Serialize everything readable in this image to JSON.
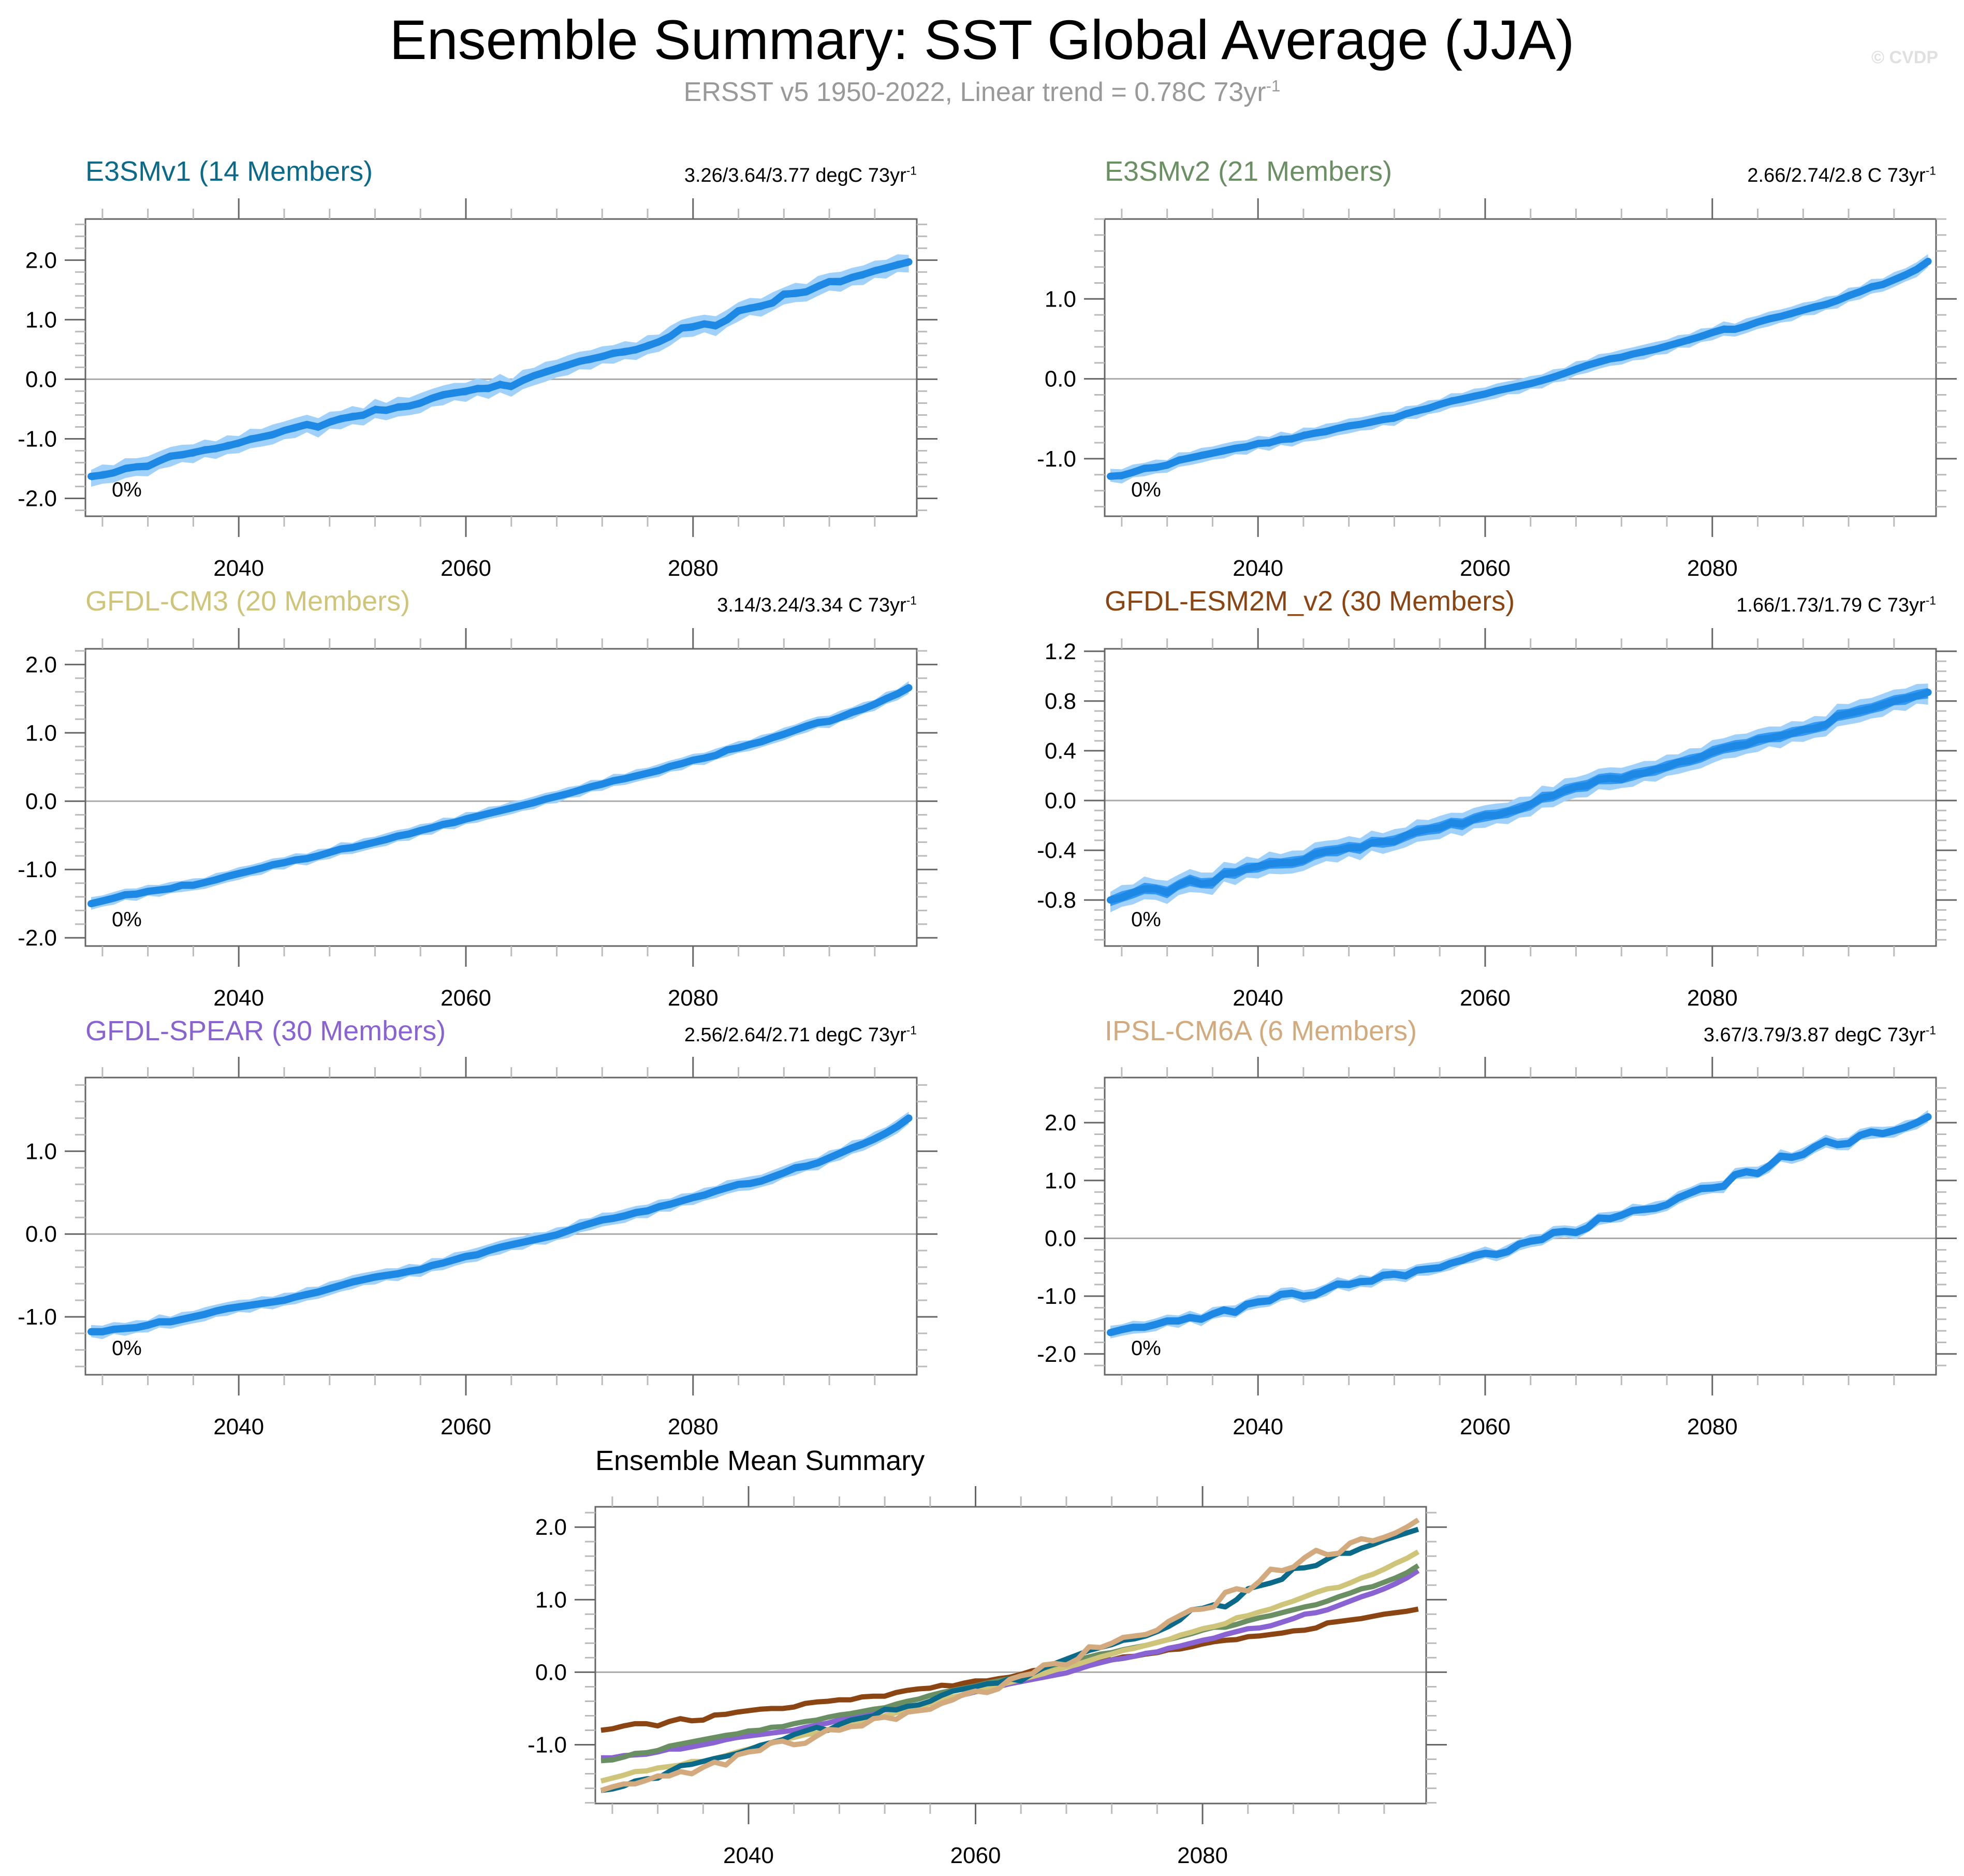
{
  "header": {
    "title": "Ensemble Summary: SST Global Average (JJA)",
    "subtitle": "ERSST v5 1950-2022, Linear trend = 0.78C 73yr",
    "subtitle_sup": "-1",
    "copyright": "© CVDP"
  },
  "colors": {
    "outer_band": "#9fd1fb",
    "inner_band": "#3399f5",
    "mean_line": "#1e88e5",
    "zero_line": "#aaaaaa",
    "axis": "#666666"
  },
  "chart_data": [
    {
      "type": "area",
      "title": "E3SMv1 (14 Members)",
      "title_color": "#0b6a8a",
      "trend_label": "3.26/3.64/3.77 degC 73yr",
      "trend_sup": "-1",
      "percent_label": "0%",
      "x_start": 2027,
      "xticks": [
        2040,
        2060,
        2080
      ],
      "xlim": [
        2026.5,
        2099.7
      ],
      "yticks": [
        -2.0,
        -1.0,
        0.0,
        1.0,
        2.0
      ],
      "ytick_labels": [
        "-2.0",
        "-1.0",
        "0.0",
        "1.0",
        "2.0"
      ],
      "ylim": [
        -2.3,
        2.69
      ],
      "spread_inner": 0.07,
      "spread_outer": 0.18,
      "mean": [
        -1.63,
        -1.61,
        -1.57,
        -1.5,
        -1.47,
        -1.46,
        -1.37,
        -1.29,
        -1.27,
        -1.23,
        -1.19,
        -1.16,
        -1.12,
        -1.07,
        -1.01,
        -0.97,
        -0.93,
        -0.86,
        -0.81,
        -0.76,
        -0.8,
        -0.72,
        -0.66,
        -0.63,
        -0.6,
        -0.51,
        -0.52,
        -0.47,
        -0.45,
        -0.4,
        -0.32,
        -0.26,
        -0.23,
        -0.2,
        -0.16,
        -0.15,
        -0.09,
        -0.12,
        -0.02,
        0.06,
        0.12,
        0.18,
        0.24,
        0.3,
        0.34,
        0.38,
        0.44,
        0.46,
        0.5,
        0.56,
        0.63,
        0.72,
        0.86,
        0.88,
        0.93,
        0.9,
        1.0,
        1.15,
        1.19,
        1.23,
        1.28,
        1.43,
        1.44,
        1.47,
        1.56,
        1.64,
        1.64,
        1.71,
        1.76,
        1.82,
        1.87,
        1.92,
        1.97
      ]
    },
    {
      "type": "area",
      "title": "E3SMv2 (21 Members)",
      "title_color": "#6a8f62",
      "trend_label": "2.66/2.74/2.8 C 73yr",
      "trend_sup": "-1",
      "percent_label": "0%",
      "x_start": 2027,
      "xticks": [
        2040,
        2060,
        2080
      ],
      "xlim": [
        2026.5,
        2099.7
      ],
      "yticks": [
        -1.0,
        0.0,
        1.0
      ],
      "ytick_labels": [
        "-1.0",
        "0.0",
        "1.0"
      ],
      "ylim": [
        -1.72,
        2.0
      ],
      "spread_inner": 0.05,
      "spread_outer": 0.1,
      "mean": [
        -1.22,
        -1.21,
        -1.17,
        -1.12,
        -1.11,
        -1.08,
        -1.02,
        -0.99,
        -0.96,
        -0.93,
        -0.9,
        -0.87,
        -0.85,
        -0.81,
        -0.8,
        -0.76,
        -0.75,
        -0.71,
        -0.68,
        -0.66,
        -0.62,
        -0.59,
        -0.57,
        -0.54,
        -0.51,
        -0.49,
        -0.44,
        -0.4,
        -0.37,
        -0.32,
        -0.28,
        -0.25,
        -0.22,
        -0.19,
        -0.15,
        -0.12,
        -0.09,
        -0.06,
        -0.02,
        0.02,
        0.07,
        0.12,
        0.17,
        0.21,
        0.25,
        0.27,
        0.31,
        0.34,
        0.37,
        0.41,
        0.45,
        0.49,
        0.53,
        0.58,
        0.62,
        0.62,
        0.66,
        0.71,
        0.75,
        0.78,
        0.82,
        0.86,
        0.9,
        0.93,
        0.98,
        1.04,
        1.09,
        1.15,
        1.18,
        1.24,
        1.3,
        1.37,
        1.47
      ]
    },
    {
      "type": "area",
      "title": "GFDL-CM3 (20 Members)",
      "title_color": "#cfc57a",
      "trend_label": "3.14/3.24/3.34 C 73yr",
      "trend_sup": "-1",
      "percent_label": "0%",
      "x_start": 2027,
      "xticks": [
        2040,
        2060,
        2080
      ],
      "xlim": [
        2026.5,
        2099.7
      ],
      "yticks": [
        -2.0,
        -1.0,
        0.0,
        1.0,
        2.0
      ],
      "ytick_labels": [
        "-2.0",
        "-1.0",
        "0.0",
        "1.0",
        "2.0"
      ],
      "ylim": [
        -2.12,
        2.23
      ],
      "spread_inner": 0.05,
      "spread_outer": 0.1,
      "mean": [
        -1.5,
        -1.46,
        -1.42,
        -1.37,
        -1.36,
        -1.32,
        -1.3,
        -1.28,
        -1.23,
        -1.23,
        -1.19,
        -1.15,
        -1.1,
        -1.06,
        -1.02,
        -0.98,
        -0.93,
        -0.9,
        -0.86,
        -0.84,
        -0.8,
        -0.75,
        -0.7,
        -0.68,
        -0.64,
        -0.6,
        -0.56,
        -0.51,
        -0.48,
        -0.43,
        -0.39,
        -0.34,
        -0.31,
        -0.26,
        -0.22,
        -0.18,
        -0.14,
        -0.1,
        -0.06,
        -0.02,
        0.03,
        0.07,
        0.11,
        0.16,
        0.21,
        0.25,
        0.3,
        0.33,
        0.37,
        0.41,
        0.45,
        0.51,
        0.55,
        0.6,
        0.63,
        0.67,
        0.75,
        0.78,
        0.83,
        0.87,
        0.93,
        0.98,
        1.04,
        1.1,
        1.15,
        1.17,
        1.23,
        1.3,
        1.35,
        1.42,
        1.5,
        1.57,
        1.66
      ]
    },
    {
      "type": "area",
      "title": "GFDL-ESM2M_v2 (30 Members)",
      "title_color": "#8b4513",
      "trend_label": "1.66/1.73/1.79 C 73yr",
      "trend_sup": "-1",
      "percent_label": "0%",
      "x_start": 2027,
      "xticks": [
        2040,
        2060,
        2080
      ],
      "xlim": [
        2026.5,
        2099.7
      ],
      "yticks": [
        -0.8,
        -0.4,
        0.0,
        0.4,
        0.8,
        1.2
      ],
      "ytick_labels": [
        "-0.8",
        "-0.4",
        "0.0",
        "0.4",
        "0.8",
        "1.2"
      ],
      "ylim": [
        -1.17,
        1.22
      ],
      "spread_inner": 0.05,
      "spread_outer": 0.1,
      "mean": [
        -0.8,
        -0.78,
        -0.74,
        -0.71,
        -0.71,
        -0.74,
        -0.68,
        -0.64,
        -0.67,
        -0.66,
        -0.59,
        -0.58,
        -0.55,
        -0.53,
        -0.51,
        -0.5,
        -0.5,
        -0.48,
        -0.43,
        -0.41,
        -0.4,
        -0.38,
        -0.38,
        -0.34,
        -0.33,
        -0.33,
        -0.28,
        -0.25,
        -0.23,
        -0.22,
        -0.18,
        -0.19,
        -0.15,
        -0.12,
        -0.12,
        -0.09,
        -0.07,
        -0.03,
        0.02,
        0.04,
        0.08,
        0.11,
        0.12,
        0.17,
        0.18,
        0.17,
        0.21,
        0.22,
        0.25,
        0.27,
        0.31,
        0.32,
        0.35,
        0.39,
        0.42,
        0.44,
        0.45,
        0.49,
        0.5,
        0.52,
        0.54,
        0.57,
        0.58,
        0.61,
        0.68,
        0.7,
        0.72,
        0.74,
        0.77,
        0.8,
        0.82,
        0.84,
        0.87
      ]
    },
    {
      "type": "area",
      "title": "GFDL-SPEAR (30 Members)",
      "title_color": "#8a63d2",
      "trend_label": "2.56/2.64/2.71 degC 73yr",
      "trend_sup": "-1",
      "percent_label": "0%",
      "x_start": 2027,
      "xticks": [
        2040,
        2060,
        2080
      ],
      "xlim": [
        2026.5,
        2099.7
      ],
      "yticks": [
        -1.0,
        0.0,
        1.0
      ],
      "ytick_labels": [
        "-1.0",
        "0.0",
        "1.0"
      ],
      "ylim": [
        -1.7,
        1.89
      ],
      "spread_inner": 0.04,
      "spread_outer": 0.09,
      "mean": [
        -1.18,
        -1.18,
        -1.15,
        -1.14,
        -1.13,
        -1.1,
        -1.06,
        -1.06,
        -1.03,
        -1.0,
        -0.97,
        -0.93,
        -0.9,
        -0.88,
        -0.86,
        -0.84,
        -0.82,
        -0.8,
        -0.76,
        -0.73,
        -0.7,
        -0.66,
        -0.62,
        -0.58,
        -0.55,
        -0.52,
        -0.5,
        -0.48,
        -0.45,
        -0.43,
        -0.38,
        -0.35,
        -0.31,
        -0.27,
        -0.25,
        -0.2,
        -0.16,
        -0.13,
        -0.1,
        -0.07,
        -0.04,
        -0.01,
        0.04,
        0.09,
        0.13,
        0.17,
        0.19,
        0.22,
        0.26,
        0.28,
        0.33,
        0.36,
        0.4,
        0.44,
        0.47,
        0.52,
        0.56,
        0.6,
        0.61,
        0.64,
        0.69,
        0.74,
        0.8,
        0.82,
        0.86,
        0.92,
        0.98,
        1.04,
        1.09,
        1.15,
        1.22,
        1.3,
        1.4
      ]
    },
    {
      "type": "area",
      "title": "IPSL-CM6A (6 Members)",
      "title_color": "#d2aa7d",
      "trend_label": "3.67/3.79/3.87 degC 73yr",
      "trend_sup": "-1",
      "percent_label": "0%",
      "x_start": 2027,
      "xticks": [
        2040,
        2060,
        2080
      ],
      "xlim": [
        2026.5,
        2099.7
      ],
      "yticks": [
        -2.0,
        -1.0,
        0.0,
        1.0,
        2.0
      ],
      "ytick_labels": [
        "-2.0",
        "-1.0",
        "0.0",
        "1.0",
        "2.0"
      ],
      "ylim": [
        -2.36,
        2.78
      ],
      "spread_inner": 0.05,
      "spread_outer": 0.12,
      "mean": [
        -1.63,
        -1.58,
        -1.54,
        -1.54,
        -1.49,
        -1.43,
        -1.43,
        -1.37,
        -1.4,
        -1.31,
        -1.24,
        -1.28,
        -1.14,
        -1.1,
        -1.08,
        -0.97,
        -0.95,
        -1.0,
        -0.98,
        -0.88,
        -0.79,
        -0.8,
        -0.75,
        -0.74,
        -0.64,
        -0.62,
        -0.65,
        -0.55,
        -0.53,
        -0.51,
        -0.43,
        -0.38,
        -0.3,
        -0.26,
        -0.28,
        -0.23,
        -0.1,
        -0.05,
        -0.02,
        0.1,
        0.12,
        0.1,
        0.18,
        0.35,
        0.34,
        0.4,
        0.48,
        0.5,
        0.52,
        0.58,
        0.7,
        0.78,
        0.86,
        0.87,
        0.9,
        1.1,
        1.15,
        1.12,
        1.25,
        1.42,
        1.4,
        1.45,
        1.58,
        1.68,
        1.62,
        1.64,
        1.78,
        1.84,
        1.81,
        1.86,
        1.92,
        2.0,
        2.1
      ]
    },
    {
      "type": "line",
      "title": "Ensemble Mean Summary",
      "x_start": 2027,
      "xticks": [
        2040,
        2060,
        2080
      ],
      "xlim": [
        2026.5,
        2099.7
      ],
      "yticks": [
        -1.0,
        0.0,
        1.0,
        2.0
      ],
      "ytick_labels": [
        "-1.0",
        "0.0",
        "1.0",
        "2.0"
      ],
      "ylim": [
        -1.81,
        2.28
      ],
      "series_from_panels": true,
      "series": [
        {
          "name": "GFDL-ESM2M_v2",
          "color": "#8b4513",
          "panel": 3
        },
        {
          "name": "GFDL-SPEAR",
          "color": "#8a63d2",
          "panel": 4
        },
        {
          "name": "E3SMv2",
          "color": "#6a8f62",
          "panel": 1
        },
        {
          "name": "GFDL-CM3",
          "color": "#cfc57a",
          "panel": 2
        },
        {
          "name": "E3SMv1",
          "color": "#0b6a8a",
          "panel": 0
        },
        {
          "name": "IPSL-CM6A",
          "color": "#d2aa7d",
          "panel": 5
        }
      ]
    }
  ]
}
